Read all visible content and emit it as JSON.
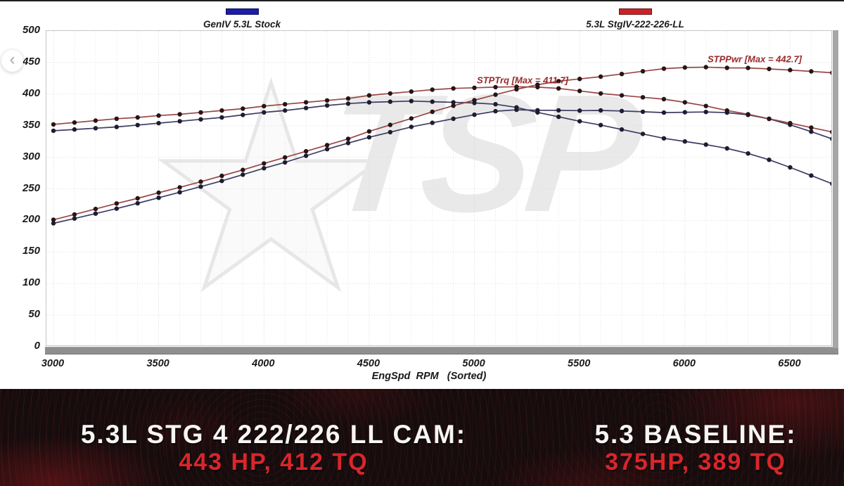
{
  "nav": {
    "prev_icon": "‹"
  },
  "legend": [
    {
      "label": "GenIV 5.3L Stock",
      "color": "#1c1cab"
    },
    {
      "label": "5.3L StgIV-222-226-LL",
      "color": "#cb2128"
    }
  ],
  "chart_data": {
    "type": "line",
    "title": "",
    "xlabel": "EngSpd  RPM   (Sorted)",
    "ylabel": "",
    "xlim": [
      3000,
      6736
    ],
    "ylim": [
      0,
      500
    ],
    "x_ticks": [
      3000,
      3500,
      4000,
      4500,
      5000,
      5500,
      6000,
      6500
    ],
    "y_ticks": [
      0,
      50,
      100,
      150,
      200,
      250,
      300,
      350,
      400,
      450,
      500
    ],
    "grid": "dotted",
    "legend_position": "top",
    "watermark": {
      "text": "TSP",
      "star_icon": "★"
    },
    "x": [
      3000,
      3100,
      3200,
      3300,
      3400,
      3500,
      3600,
      3700,
      3800,
      3900,
      4000,
      4100,
      4200,
      4300,
      4400,
      4500,
      4600,
      4700,
      4800,
      4900,
      5000,
      5100,
      5200,
      5300,
      5400,
      5500,
      5600,
      5700,
      5800,
      5900,
      6000,
      6100,
      6200,
      6300,
      6400,
      6500,
      6600,
      6700
    ],
    "series": [
      {
        "name": "STPTrq - GenIV 5.3L Stock",
        "color": "#3d3d63",
        "dot": "#1d1d2e",
        "values": [
          342,
          344,
          346,
          348,
          351,
          354,
          357,
          360,
          363,
          367,
          371,
          374,
          378,
          382,
          385,
          387,
          388,
          389,
          388,
          387,
          386,
          384,
          379,
          371,
          364,
          357,
          351,
          344,
          337,
          330,
          325,
          320,
          314,
          306,
          296,
          284,
          271,
          258
        ]
      },
      {
        "name": "STPPwr - GenIV 5.3L Stock",
        "color": "#3d3d63",
        "dot": "#1d1d2e",
        "values": [
          195.4,
          203.0,
          210.8,
          218.7,
          227.2,
          235.9,
          244.7,
          253.6,
          262.6,
          272.5,
          282.6,
          292.0,
          302.3,
          312.8,
          322.5,
          331.6,
          339.8,
          348.1,
          354.6,
          361.0,
          367.4,
          372.9,
          375.2,
          374.4,
          374.3,
          373.8,
          374.2,
          373.3,
          372.1,
          370.7,
          371.3,
          371.7,
          370.7,
          367.1,
          360.7,
          351.5,
          340.5,
          329.1
        ]
      },
      {
        "name": "STPTrq - 5.3L StgIV-222-226-LL",
        "color": "#9a4747",
        "dot": "#271419",
        "values": [
          352,
          355,
          358,
          361,
          363,
          366,
          368,
          371,
          374,
          377,
          381,
          384,
          387,
          390,
          393,
          398,
          401,
          404,
          407,
          409,
          410,
          411,
          411.7,
          411,
          409,
          405,
          401,
          398,
          395,
          392,
          387,
          381.2,
          374,
          368,
          361,
          354,
          347,
          340
        ]
      },
      {
        "name": "STPPwr - 5.3L StgIV-222-226-LL",
        "color": "#9a4747",
        "dot": "#271419",
        "values": [
          201.1,
          209.5,
          218.1,
          226.8,
          235.0,
          243.9,
          252.3,
          261.4,
          270.6,
          279.9,
          290.2,
          299.8,
          309.5,
          319.3,
          329.2,
          341.0,
          351.2,
          361.5,
          372.0,
          381.6,
          390.3,
          399.1,
          407.6,
          414.8,
          420.5,
          424.1,
          427.6,
          431.9,
          436.2,
          440.3,
          442.1,
          442.7,
          441.5,
          441.4,
          439.9,
          438.1,
          436.0,
          433.7
        ]
      }
    ],
    "annotations": [
      {
        "text": "STPTrq [Max = 411.7]"
      },
      {
        "text": "STPPwr [Max = 442.7]"
      }
    ]
  },
  "banner": {
    "accent": "#d8262c",
    "left": {
      "line1": "5.3L STG 4 222/226 LL CAM:",
      "line2": "443 HP, 412 TQ"
    },
    "right": {
      "line1": "5.3 BASELINE:",
      "line2": "375HP, 389 TQ"
    }
  }
}
